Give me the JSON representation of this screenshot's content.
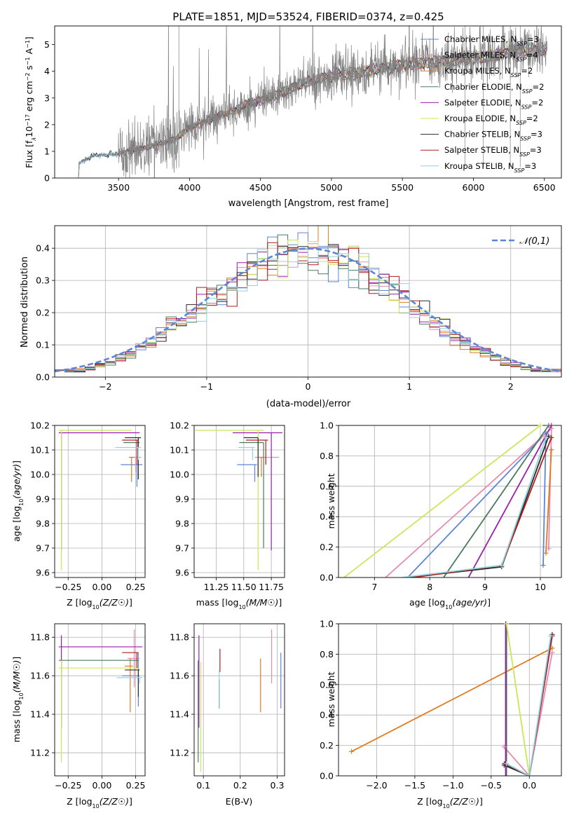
{
  "figure": {
    "title": "PLATE=1851, MJD=53524, FIBERID=0374, z=0.425"
  },
  "colors": {
    "Chabrier MILES": "#5b86d8",
    "Salpeter MILES": "#e58bb0",
    "Kroupa MILES": "#e07b20",
    "Chabrier ELODIE": "#4a7a5a",
    "Salpeter ELODIE": "#9a1fa8",
    "Kroupa ELODIE": "#c8e85a",
    "Chabrier STELIB": "#2b2b2b",
    "Salpeter STELIB": "#b01f1f",
    "Kroupa STELIB": "#8fd4e0",
    "data": "#808080",
    "normal_curve": "#5b86d8"
  },
  "chart_data": [
    {
      "id": "spectrum",
      "type": "line",
      "title": "PLATE=1851, MJD=53524, FIBERID=0374, z=0.425",
      "xlabel": "wavelength [Angstrom, rest frame]",
      "ylabel": "Flux [f_λ 10^-17 erg cm^-2 s^-1 A^-1]",
      "xlim": [
        3050,
        6620
      ],
      "ylim": [
        0,
        5.7
      ],
      "xticks": [
        3500,
        4000,
        4500,
        5000,
        5500,
        6000,
        6500
      ],
      "yticks": [
        0,
        1,
        2,
        3,
        4,
        5
      ],
      "legend_position": "top-right",
      "legend": [
        {
          "name": "Chabrier MILES",
          "ssp": "3"
        },
        {
          "name": "Salpeter MILES",
          "ssp": "4"
        },
        {
          "name": "Kroupa MILES",
          "ssp": "2"
        },
        {
          "name": "Chabrier ELODIE",
          "ssp": "2"
        },
        {
          "name": "Salpeter ELODIE",
          "ssp": "2"
        },
        {
          "name": "Kroupa ELODIE",
          "ssp": "2"
        },
        {
          "name": "Chabrier STELIB",
          "ssp": "3"
        },
        {
          "name": "Salpeter STELIB",
          "ssp": "3"
        },
        {
          "name": "Kroupa STELIB",
          "ssp": "3"
        }
      ],
      "continuum": {
        "x": [
          3200,
          3220,
          3300,
          3400,
          3500,
          3600,
          3700,
          3800,
          3900,
          4000,
          4100,
          4200,
          4300,
          4400,
          4500,
          4600,
          4700,
          4800,
          4900,
          5000,
          5100,
          5200,
          5300,
          5400,
          5500,
          5600,
          5700,
          5800,
          5900,
          6000,
          6100,
          6200,
          6300,
          6400
        ],
        "y": [
          0,
          0.55,
          0.8,
          0.88,
          0.9,
          1.05,
          1.15,
          1.3,
          1.45,
          1.9,
          2.1,
          2.3,
          2.5,
          2.75,
          2.9,
          3.1,
          3.3,
          3.55,
          3.7,
          3.85,
          3.9,
          3.95,
          4.05,
          4.15,
          4.25,
          4.3,
          4.35,
          4.4,
          4.45,
          4.5,
          4.55,
          4.65,
          4.75,
          4.8
        ]
      }
    },
    {
      "id": "residual_hist",
      "type": "histogram",
      "xlabel": "(data-model)/error",
      "ylabel": "Normed distribution",
      "xlim": [
        -2.5,
        2.5
      ],
      "ylim": [
        0,
        0.47
      ],
      "xticks": [
        -2,
        -1,
        0,
        1,
        2
      ],
      "yticks": [
        0,
        0.1,
        0.2,
        0.3,
        0.4
      ],
      "legend_position": "top-right",
      "legend": [
        "𝒩(0,1)"
      ],
      "bin_width": 0.1
    },
    {
      "id": "age_vs_Z",
      "type": "errorbar",
      "xlabel": "Z [log10(Z/Z☉)]",
      "ylabel": "age [log10(age/yr)]",
      "xlim": [
        -0.35,
        0.32
      ],
      "ylim": [
        9.58,
        10.2
      ],
      "xticks": [
        -0.25,
        0.0,
        0.25
      ],
      "yticks": [
        9.6,
        9.7,
        9.8,
        9.9,
        10.0,
        10.1,
        10.2
      ],
      "points": [
        {
          "model": "Chabrier MILES",
          "x": 0.26,
          "xerr": [
            0.12,
            0.04
          ],
          "y": 10.04,
          "yerr": [
            0.09,
            0.0
          ]
        },
        {
          "model": "Salpeter MILES",
          "x": 0.25,
          "xerr": [
            0.05,
            0.04
          ],
          "y": 10.07,
          "yerr": [
            0.06,
            0.0
          ]
        },
        {
          "model": "Kroupa MILES",
          "x": 0.22,
          "xerr": [
            0.02,
            0.02
          ],
          "y": 10.07,
          "yerr": [
            0.1,
            0.0
          ]
        },
        {
          "model": "Chabrier ELODIE",
          "x": 0.26,
          "xerr": [
            0.1,
            0.02
          ],
          "y": 10.13,
          "yerr": [
            0.02,
            0.0
          ]
        },
        {
          "model": "Salpeter ELODIE",
          "x": -0.3,
          "xerr": [
            0.02,
            0.58
          ],
          "y": 10.17,
          "yerr": [
            0.48,
            0.0
          ]
        },
        {
          "model": "Kroupa ELODIE",
          "x": -0.3,
          "xerr": [
            0.02,
            0.52
          ],
          "y": 10.18,
          "yerr": [
            0.57,
            0.0
          ]
        },
        {
          "model": "Chabrier STELIB",
          "x": 0.27,
          "xerr": [
            0.1,
            0.02
          ],
          "y": 10.15,
          "yerr": [
            0.17,
            0.0
          ]
        },
        {
          "model": "Salpeter STELIB",
          "x": 0.26,
          "xerr": [
            0.11,
            0.01
          ],
          "y": 10.14,
          "yerr": [
            0.1,
            0.0
          ]
        },
        {
          "model": "Kroupa STELIB",
          "x": 0.27,
          "xerr": [
            0.17,
            0.02
          ],
          "y": 10.11,
          "yerr": [
            0.05,
            0.0
          ]
        }
      ]
    },
    {
      "id": "age_vs_mass",
      "type": "errorbar",
      "xlabel": "mass [log10(M/M☉)]",
      "ylabel": "",
      "xlim": [
        11.05,
        11.87
      ],
      "ylim": [
        9.58,
        10.2
      ],
      "xticks": [
        11.25,
        11.5,
        11.75
      ],
      "yticks": [
        9.6,
        9.7,
        9.8,
        9.9,
        10.0,
        10.1,
        10.2
      ],
      "points": [
        {
          "model": "Chabrier MILES",
          "x": 11.6,
          "xerr": [
            0.16,
            0.02
          ],
          "y": 10.04,
          "yerr": [
            0.07,
            0.0
          ]
        },
        {
          "model": "Salpeter MILES",
          "x": 11.7,
          "xerr": [
            0.1,
            0.12
          ],
          "y": 10.07,
          "yerr": [
            0.03,
            0.0
          ]
        },
        {
          "model": "Kroupa MILES",
          "x": 11.66,
          "xerr": [
            0.03,
            0.02
          ],
          "y": 10.07,
          "yerr": [
            0.08,
            0.0
          ]
        },
        {
          "model": "Chabrier ELODIE",
          "x": 11.68,
          "xerr": [
            0.22,
            0.0
          ],
          "y": 10.13,
          "yerr": [
            0.43,
            0.0
          ]
        },
        {
          "model": "Salpeter ELODIE",
          "x": 11.75,
          "xerr": [
            0.35,
            0.1
          ],
          "y": 10.17,
          "yerr": [
            0.48,
            0.0
          ]
        },
        {
          "model": "Kroupa ELODIE",
          "x": 11.63,
          "xerr": [
            0.57,
            0.05
          ],
          "y": 10.18,
          "yerr": [
            0.57,
            0.0
          ]
        },
        {
          "model": "Chabrier STELIB",
          "x": 11.63,
          "xerr": [
            0.13,
            0.0
          ],
          "y": 10.15,
          "yerr": [
            0.16,
            0.0
          ]
        },
        {
          "model": "Salpeter STELIB",
          "x": 11.7,
          "xerr": [
            0.18,
            0.02
          ],
          "y": 10.14,
          "yerr": [
            0.1,
            0.0
          ]
        },
        {
          "model": "Kroupa STELIB",
          "x": 11.58,
          "xerr": [
            0.13,
            0.02
          ],
          "y": 10.11,
          "yerr": [
            0.05,
            0.0
          ]
        }
      ]
    },
    {
      "id": "weight_vs_age",
      "type": "line",
      "xlabel": "age [log10(age/yr)]",
      "ylabel": "mass weight",
      "xlim": [
        6.35,
        10.38
      ],
      "ylim": [
        0,
        1.0
      ],
      "xticks": [
        7,
        8,
        9,
        10
      ],
      "yticks": [
        0.0,
        0.2,
        0.4,
        0.6,
        0.8,
        1.0
      ],
      "series": [
        {
          "model": "Chabrier MILES",
          "x": [
            7.6,
            10.1,
            10.05
          ],
          "y": [
            0.0,
            0.95,
            0.08
          ]
        },
        {
          "model": "Salpeter MILES",
          "x": [
            7.2,
            10.2,
            10.15
          ],
          "y": [
            0.0,
            0.98,
            0.19
          ]
        },
        {
          "model": "Kroupa MILES",
          "x": [
            10.1,
            10.2
          ],
          "y": [
            0.16,
            0.84
          ]
        },
        {
          "model": "Chabrier ELODIE",
          "x": [
            8.25,
            10.15
          ],
          "y": [
            0.0,
            1.0
          ]
        },
        {
          "model": "Salpeter ELODIE",
          "x": [
            8.7,
            10.2
          ],
          "y": [
            0.0,
            1.0
          ]
        },
        {
          "model": "Kroupa ELODIE",
          "x": [
            6.45,
            10.0
          ],
          "y": [
            0.0,
            1.0
          ]
        },
        {
          "model": "Chabrier STELIB",
          "x": [
            7.6,
            9.3,
            10.15
          ],
          "y": [
            0.0,
            0.07,
            0.93
          ]
        },
        {
          "model": "Salpeter STELIB",
          "x": [
            7.7,
            9.3,
            10.2
          ],
          "y": [
            0.0,
            0.08,
            0.92
          ]
        },
        {
          "model": "Kroupa STELIB",
          "x": [
            7.5,
            9.3,
            10.1
          ],
          "y": [
            0.0,
            0.08,
            0.92
          ]
        }
      ]
    },
    {
      "id": "mass_vs_Z",
      "type": "errorbar",
      "xlabel": "Z [log10(Z/Z☉)]",
      "ylabel": "mass [log10(M/M☉)]",
      "xlim": [
        -0.35,
        0.32
      ],
      "ylim": [
        11.08,
        11.87
      ],
      "xticks": [
        -0.25,
        0.0,
        0.25
      ],
      "yticks": [
        11.2,
        11.4,
        11.6,
        11.8
      ],
      "points": [
        {
          "model": "Chabrier MILES",
          "x": 0.27,
          "xerr": [
            0.12,
            0.01
          ],
          "y": 11.6,
          "yerr": [
            0.16,
            0.12
          ]
        },
        {
          "model": "Salpeter MILES",
          "x": 0.24,
          "xerr": [
            0.05,
            0.04
          ],
          "y": 11.69,
          "yerr": [
            0.15,
            0.15
          ]
        },
        {
          "model": "Kroupa MILES",
          "x": 0.21,
          "xerr": [
            0.04,
            0.02
          ],
          "y": 11.65,
          "yerr": [
            0.24,
            0.04
          ]
        },
        {
          "model": "Chabrier ELODIE",
          "x": 0.27,
          "xerr": [
            0.59,
            0.0
          ],
          "y": 11.68,
          "yerr": [
            0.0,
            0.0
          ]
        },
        {
          "model": "Salpeter ELODIE",
          "x": -0.3,
          "xerr": [
            0.02,
            0.6
          ],
          "y": 11.75,
          "yerr": [
            0.42,
            0.06
          ]
        },
        {
          "model": "Kroupa ELODIE",
          "x": -0.3,
          "xerr": [
            0.02,
            0.58
          ],
          "y": 11.64,
          "yerr": [
            0.49,
            0.04
          ]
        },
        {
          "model": "Chabrier STELIB",
          "x": 0.27,
          "xerr": [
            0.1,
            0.01
          ],
          "y": 11.63,
          "yerr": [
            0.14,
            0.0
          ]
        },
        {
          "model": "Salpeter STELIB",
          "x": 0.26,
          "xerr": [
            0.11,
            0.01
          ],
          "y": 11.72,
          "yerr": [
            0.08,
            0.0
          ]
        },
        {
          "model": "Kroupa STELIB",
          "x": 0.28,
          "xerr": [
            0.17,
            0.02
          ],
          "y": 11.59,
          "yerr": [
            0.03,
            0.0
          ]
        }
      ]
    },
    {
      "id": "mass_vs_EBV",
      "type": "errorbar",
      "xlabel": "E(B-V)",
      "ylabel": "",
      "xlim": [
        0.075,
        0.32
      ],
      "ylim": [
        11.08,
        11.87
      ],
      "xticks": [
        0.1,
        0.2,
        0.3
      ],
      "yticks": [
        11.2,
        11.4,
        11.6,
        11.8
      ],
      "points": [
        {
          "model": "Chabrier MILES",
          "x": 0.31,
          "y": 11.58,
          "yerr": [
            0.15,
            0.14
          ]
        },
        {
          "model": "Salpeter MILES",
          "x": 0.285,
          "y": 11.7,
          "yerr": [
            0.14,
            0.14
          ]
        },
        {
          "model": "Kroupa MILES",
          "x": 0.255,
          "y": 11.55,
          "yerr": [
            0.14,
            0.14
          ]
        },
        {
          "model": "Chabrier ELODIE",
          "x": 0.086,
          "y": 11.68,
          "yerr": [
            0.53,
            0.0
          ]
        },
        {
          "model": "Salpeter ELODIE",
          "x": 0.088,
          "y": 11.57,
          "yerr": [
            0.24,
            0.24
          ]
        },
        {
          "model": "Kroupa ELODIE",
          "x": 0.093,
          "y": 11.4,
          "yerr": [
            0.3,
            0.27
          ]
        },
        {
          "model": "Chabrier STELIB",
          "x": 0.143,
          "y": 11.58,
          "yerr": [
            0.15,
            0.0
          ]
        },
        {
          "model": "Salpeter STELIB",
          "x": 0.145,
          "y": 11.62,
          "yerr": [
            0.0,
            0.12
          ]
        },
        {
          "model": "Kroupa STELIB",
          "x": 0.143,
          "y": 11.53,
          "yerr": [
            0.1,
            0.1
          ]
        }
      ]
    },
    {
      "id": "weight_vs_Z",
      "type": "line",
      "xlabel": "Z [log10(Z/Z☉)]",
      "ylabel": "mass weight",
      "xlim": [
        -2.5,
        0.42
      ],
      "ylim": [
        0,
        1.0
      ],
      "xticks": [
        -2.0,
        -1.5,
        -1.0,
        -0.5,
        0.0
      ],
      "yticks": [
        0.0,
        0.2,
        0.4,
        0.6,
        0.8,
        1.0
      ],
      "series": [
        {
          "model": "Chabrier MILES",
          "x": [
            -0.33,
            0.0,
            0.3
          ],
          "y": [
            0.08,
            0.0,
            0.92
          ]
        },
        {
          "model": "Salpeter MILES",
          "x": [
            -0.33,
            0.0,
            0.3
          ],
          "y": [
            0.19,
            0.0,
            0.81
          ]
        },
        {
          "model": "Kroupa MILES",
          "x": [
            -2.33,
            0.3
          ],
          "y": [
            0.16,
            0.84
          ]
        },
        {
          "model": "Chabrier ELODIE",
          "x": [
            -0.3,
            -0.3
          ],
          "y": [
            0.0,
            1.0
          ]
        },
        {
          "model": "Salpeter ELODIE",
          "x": [
            -0.31,
            -0.31
          ],
          "y": [
            0.0,
            1.0
          ]
        },
        {
          "model": "Kroupa ELODIE",
          "x": [
            -0.3,
            0.0
          ],
          "y": [
            1.0,
            0.0
          ]
        },
        {
          "model": "Chabrier STELIB",
          "x": [
            -0.33,
            0.0,
            0.3
          ],
          "y": [
            0.07,
            0.0,
            0.93
          ]
        },
        {
          "model": "Salpeter STELIB",
          "x": [
            -0.32,
            0.0,
            0.3
          ],
          "y": [
            0.08,
            0.0,
            0.92
          ]
        },
        {
          "model": "Kroupa STELIB",
          "x": [
            -0.3,
            0.0,
            0.28
          ],
          "y": [
            0.08,
            0.0,
            0.92
          ]
        }
      ]
    }
  ]
}
